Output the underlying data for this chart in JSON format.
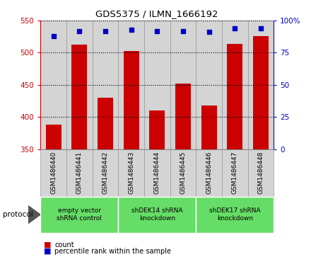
{
  "title": "GDS5375 / ILMN_1666192",
  "samples": [
    "GSM1486440",
    "GSM1486441",
    "GSM1486442",
    "GSM1486443",
    "GSM1486444",
    "GSM1486445",
    "GSM1486446",
    "GSM1486447",
    "GSM1486448"
  ],
  "counts": [
    388,
    513,
    430,
    503,
    410,
    452,
    418,
    514,
    526
  ],
  "percentiles": [
    88,
    92,
    92,
    93,
    92,
    92,
    91,
    94,
    94
  ],
  "bar_color": "#cc0000",
  "dot_color": "#0000cc",
  "ylim_left": [
    350,
    550
  ],
  "ylim_right": [
    0,
    100
  ],
  "yticks_left": [
    350,
    400,
    450,
    500,
    550
  ],
  "yticks_right": [
    0,
    25,
    50,
    75,
    100
  ],
  "ytick_labels_right": [
    "0",
    "25",
    "50",
    "75",
    "100%"
  ],
  "col_bg_color": "#d4d4d4",
  "col_border_color": "#999999",
  "group_bg_color": "#66dd66",
  "groups": [
    {
      "label": "empty vector\nshRNA control",
      "start": 0,
      "end": 3
    },
    {
      "label": "shDEK14 shRNA\nknockdown",
      "start": 3,
      "end": 6
    },
    {
      "label": "shDEK17 shRNA\nknockdown",
      "start": 6,
      "end": 9
    }
  ],
  "legend_count_label": "count",
  "legend_pct_label": "percentile rank within the sample",
  "protocol_label": "protocol"
}
